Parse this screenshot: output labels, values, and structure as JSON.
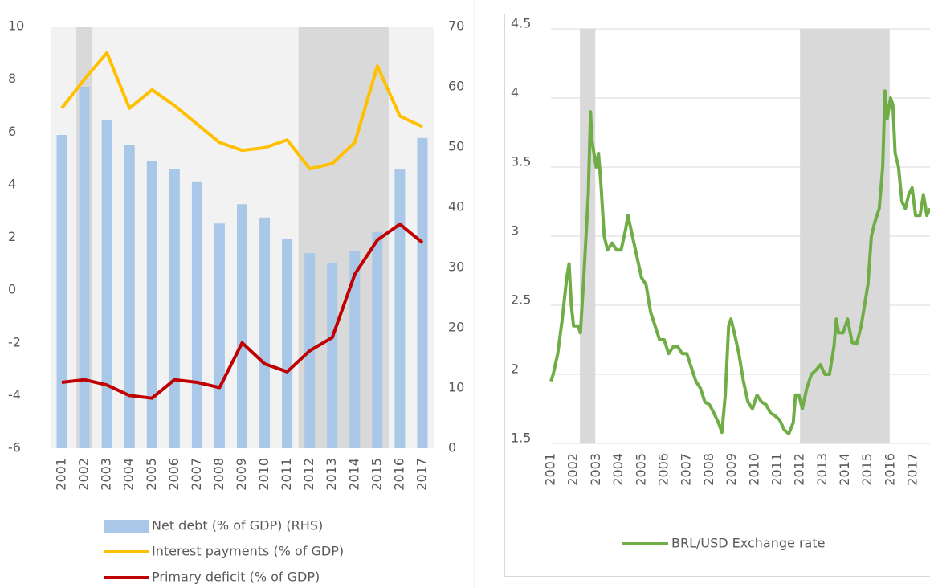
{
  "chart_data": [
    {
      "type": "combo",
      "categories": [
        "2001",
        "2002",
        "2003",
        "2004",
        "2005",
        "2006",
        "2007",
        "2008",
        "2009",
        "2010",
        "2011",
        "2012",
        "2013",
        "2014",
        "2015",
        "2016",
        "2017"
      ],
      "series": [
        {
          "name": "Net debt (% of GDP) (RHS)",
          "type": "bar",
          "axis": "y2",
          "color": "#a9c8e8",
          "values": [
            52,
            60,
            54.5,
            50.4,
            47.7,
            46.3,
            44.3,
            37.3,
            40.5,
            38.3,
            34.7,
            32.4,
            30.8,
            32.7,
            35.9,
            46.4,
            51.5
          ]
        },
        {
          "name": "Interest payments (% of GDP)",
          "type": "line",
          "color": "#ffc000",
          "values": [
            6.9,
            8.0,
            9.0,
            6.9,
            7.6,
            7.0,
            6.3,
            5.6,
            5.3,
            5.4,
            5.7,
            4.6,
            4.8,
            5.6,
            8.5,
            6.6,
            6.2
          ]
        },
        {
          "name": "Primary deficit (% of GDP)",
          "type": "line",
          "color": "#c00000",
          "values": [
            -3.5,
            -3.4,
            -3.6,
            -4.0,
            -4.1,
            -3.4,
            -3.5,
            -3.7,
            -2.0,
            -2.8,
            -3.1,
            -2.3,
            -1.8,
            0.6,
            1.9,
            2.5,
            1.8
          ]
        }
      ],
      "ylim": [
        -6,
        10
      ],
      "yticks": [
        -6,
        -4,
        -2,
        0,
        2,
        4,
        6,
        8,
        10
      ],
      "y2lim": [
        0,
        70
      ],
      "y2ticks": [
        0,
        10,
        20,
        30,
        40,
        50,
        60,
        70
      ],
      "shaded": [
        [
          "2002",
          "2002"
        ],
        [
          "2012",
          "2015"
        ]
      ],
      "grid": false
    },
    {
      "type": "line",
      "x": [
        2001.0,
        2001.1,
        2001.3,
        2001.5,
        2001.7,
        2001.8,
        2001.9,
        2002.0,
        2002.2,
        2002.3,
        2002.45,
        2002.55,
        2002.65,
        2002.75,
        2002.8,
        2002.9,
        2003.0,
        2003.1,
        2003.2,
        2003.35,
        2003.5,
        2003.7,
        2003.9,
        2004.1,
        2004.3,
        2004.4,
        2004.6,
        2004.8,
        2005.0,
        2005.2,
        2005.4,
        2005.6,
        2005.8,
        2006.0,
        2006.2,
        2006.4,
        2006.6,
        2006.8,
        2007.0,
        2007.2,
        2007.4,
        2007.6,
        2007.8,
        2008.0,
        2008.2,
        2008.4,
        2008.55,
        2008.7,
        2008.85,
        2008.95,
        2009.1,
        2009.3,
        2009.5,
        2009.7,
        2009.9,
        2010.1,
        2010.3,
        2010.5,
        2010.7,
        2010.9,
        2011.1,
        2011.3,
        2011.5,
        2011.7,
        2011.8,
        2011.95,
        2012.1,
        2012.3,
        2012.5,
        2012.7,
        2012.9,
        2013.1,
        2013.3,
        2013.5,
        2013.6,
        2013.7,
        2013.9,
        2014.1,
        2014.3,
        2014.5,
        2014.7,
        2014.85,
        2015.0,
        2015.15,
        2015.3,
        2015.5,
        2015.65,
        2015.75,
        2015.85,
        2016.0,
        2016.1,
        2016.2,
        2016.35,
        2016.5,
        2016.65,
        2016.8,
        2016.95,
        2017.1,
        2017.3,
        2017.45,
        2017.6,
        2017.74
      ],
      "series": [
        {
          "name": "BRL/USD Exchange rate",
          "color": "#70ad47",
          "values": [
            1.95,
            2.0,
            2.15,
            2.4,
            2.7,
            2.8,
            2.5,
            2.35,
            2.35,
            2.3,
            2.7,
            3.0,
            3.3,
            3.9,
            3.7,
            3.6,
            3.5,
            3.6,
            3.4,
            3.0,
            2.9,
            2.95,
            2.9,
            2.9,
            3.05,
            3.15,
            3.0,
            2.85,
            2.7,
            2.65,
            2.45,
            2.35,
            2.25,
            2.25,
            2.15,
            2.2,
            2.2,
            2.15,
            2.15,
            2.05,
            1.95,
            1.9,
            1.8,
            1.78,
            1.72,
            1.65,
            1.58,
            1.85,
            2.35,
            2.4,
            2.3,
            2.15,
            1.95,
            1.8,
            1.75,
            1.85,
            1.8,
            1.78,
            1.72,
            1.7,
            1.67,
            1.6,
            1.57,
            1.65,
            1.85,
            1.85,
            1.75,
            1.9,
            2.0,
            2.03,
            2.07,
            2.0,
            2.0,
            2.2,
            2.4,
            2.3,
            2.3,
            2.4,
            2.23,
            2.22,
            2.35,
            2.5,
            2.65,
            3.0,
            3.1,
            3.2,
            3.5,
            4.05,
            3.85,
            4.0,
            3.95,
            3.6,
            3.5,
            3.25,
            3.2,
            3.3,
            3.35,
            3.15,
            3.15,
            3.3,
            3.15,
            3.2
          ]
        }
      ],
      "xlim": [
        2001,
        2017.74
      ],
      "xticks": [
        2001,
        2002,
        2003,
        2004,
        2005,
        2006,
        2007,
        2008,
        2009,
        2010,
        2011,
        2012,
        2013,
        2014,
        2015,
        2016,
        2017
      ],
      "ylim": [
        1.5,
        4.5
      ],
      "yticks": [
        1.5,
        2,
        2.5,
        3,
        3.5,
        4,
        4.5
      ],
      "shaded": [
        [
          2002.28,
          2002.96
        ],
        [
          2012.0,
          2015.96
        ]
      ],
      "grid": true
    }
  ]
}
